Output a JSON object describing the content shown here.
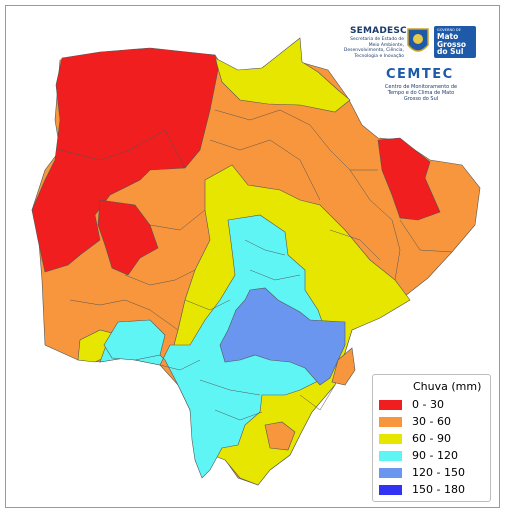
{
  "header": {
    "semadesc_title": "SEMADESC",
    "semadesc_subtitle": "Secretaria de Estado de Meio Ambiente, Desenvolvimento, Ciência, Tecnologia e Inovação",
    "gov_small": "GOVERNO DE",
    "gov_name_line1": "Mato",
    "gov_name_line2": "Grosso",
    "gov_name_line3": "do Sul",
    "cemtec_title": "CEMTEC",
    "cemtec_subtitle": "Centro de Monitoramento de Tempo e do Clima de Mato Grosso do Sul"
  },
  "legend": {
    "title": "Chuva (mm)",
    "items": [
      {
        "label": "0 - 30",
        "color": "#f01e1e"
      },
      {
        "label": "30 - 60",
        "color": "#f7963c"
      },
      {
        "label": "60 - 90",
        "color": "#e6e600"
      },
      {
        "label": "90 - 120",
        "color": "#5ff5f5"
      },
      {
        "label": "120 - 150",
        "color": "#6b96f0"
      },
      {
        "label": "150 - 180",
        "color": "#3232f5"
      }
    ]
  },
  "colors": {
    "border": "#555555",
    "frame": "#9a9a9a",
    "brand_blue": "#1e5aa8"
  }
}
